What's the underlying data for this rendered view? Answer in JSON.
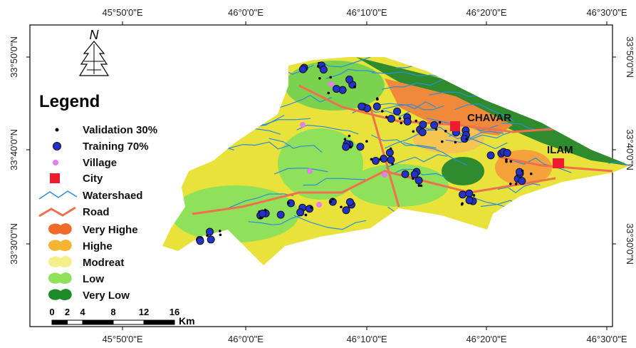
{
  "map": {
    "north": "N",
    "lon_labels": [
      "45°50'0\"E",
      "46°0'0\"E",
      "46°10'0\"E",
      "46°20'0\"E",
      "46°30'0\"E"
    ],
    "lat_labels": [
      "33°50'0\"N",
      "33°40'0\"N",
      "33°30'0\"N"
    ],
    "places": [
      "CHAVAR",
      "ILAM"
    ],
    "legend": {
      "title": "Legend",
      "items": [
        "Validation 30%",
        "Training 70%",
        "Village",
        "City",
        "Watershaed",
        "Road",
        "Very Highe",
        "Highe",
        "Modreat",
        "Low",
        "Very Low"
      ]
    },
    "scale": {
      "ticks": [
        0,
        2,
        4,
        8,
        12,
        16
      ],
      "unit": "Km"
    }
  }
}
